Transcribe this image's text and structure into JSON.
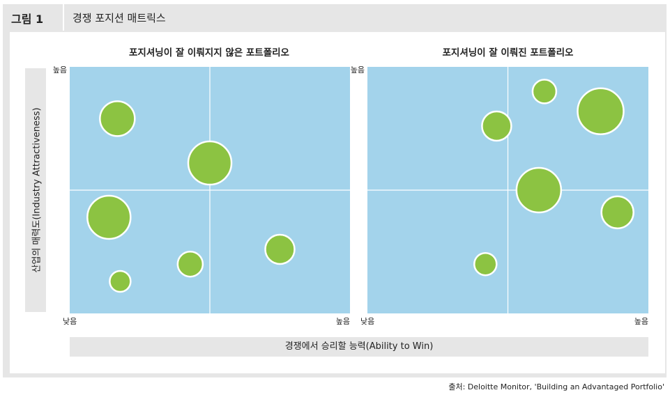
{
  "header": {
    "figure_label": "그림 1",
    "figure_title": "경쟁 포지션 매트릭스"
  },
  "axes": {
    "ylabel": "산업의 매력도(Industry Attractiveness)",
    "xlabel": "경쟁에서 승리할 능력(Ability to Win)",
    "low_label": "낮음",
    "high_label": "높음"
  },
  "colors": {
    "plot_bg": "#a3d3eb",
    "bubble": "#8cc342",
    "bubble_stroke": "#ffffff",
    "grid": "#ffffff"
  },
  "source": "출처: Deloitte Monitor, 'Building an Advantaged Portfolio'",
  "chart_data": [
    {
      "type": "scatter",
      "title": "포지셔닝이 잘 이뤄지지 않은 포트폴리오",
      "xlim": [
        0,
        1
      ],
      "ylim": [
        0,
        1
      ],
      "points": [
        {
          "x": 0.17,
          "y": 0.79,
          "size": 25
        },
        {
          "x": 0.5,
          "y": 0.61,
          "size": 31
        },
        {
          "x": 0.14,
          "y": 0.39,
          "size": 31
        },
        {
          "x": 0.75,
          "y": 0.26,
          "size": 21
        },
        {
          "x": 0.43,
          "y": 0.2,
          "size": 18
        },
        {
          "x": 0.18,
          "y": 0.13,
          "size": 15
        }
      ]
    },
    {
      "type": "scatter",
      "title": "포지셔닝이 잘 이뤄진 포트폴리오",
      "xlim": [
        0,
        1
      ],
      "ylim": [
        0,
        1
      ],
      "points": [
        {
          "x": 0.63,
          "y": 0.9,
          "size": 17
        },
        {
          "x": 0.83,
          "y": 0.82,
          "size": 33
        },
        {
          "x": 0.46,
          "y": 0.76,
          "size": 21
        },
        {
          "x": 0.61,
          "y": 0.5,
          "size": 32
        },
        {
          "x": 0.89,
          "y": 0.41,
          "size": 23
        },
        {
          "x": 0.42,
          "y": 0.2,
          "size": 16
        }
      ]
    }
  ]
}
